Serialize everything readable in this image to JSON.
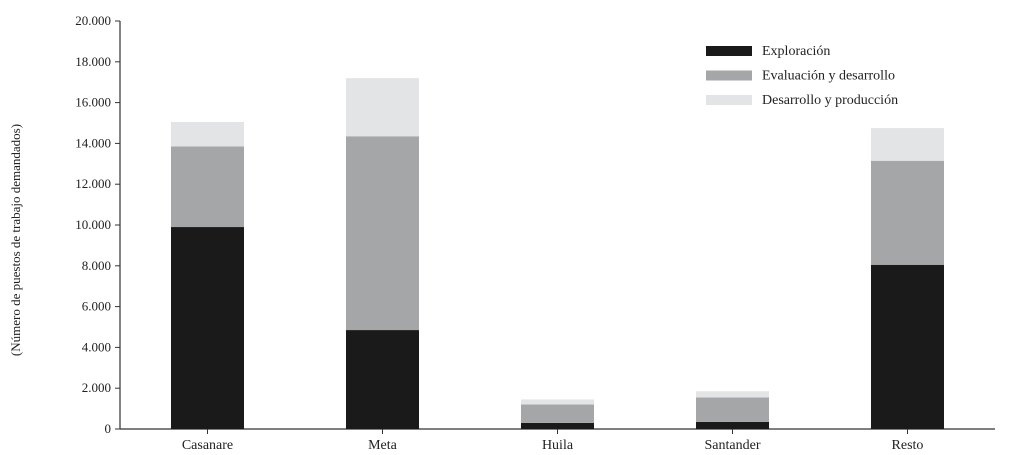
{
  "chart_data": {
    "type": "bar",
    "stacked": true,
    "title": "",
    "xlabel": "",
    "ylabel": "(Número de puestos de trabajo demandados)",
    "categories": [
      "Casanare",
      "Meta",
      "Huila",
      "Santander",
      "Resto"
    ],
    "series": [
      {
        "name": "Exploración",
        "color": "#1a1a1a",
        "values": [
          9900,
          4850,
          300,
          350,
          8050
        ]
      },
      {
        "name": "Evaluación y desarrollo",
        "color": "#a5a6a8",
        "values": [
          3950,
          9500,
          900,
          1200,
          5100
        ]
      },
      {
        "name": "Desarrollo y producción",
        "color": "#e3e4e5",
        "values": [
          1200,
          2850,
          250,
          300,
          1600
        ]
      }
    ],
    "ylim": [
      0,
      20000
    ],
    "yticks": [
      0,
      2000,
      4000,
      6000,
      8000,
      10000,
      12000,
      14000,
      16000,
      18000,
      20000
    ],
    "ytick_labels": [
      "0",
      "2.000",
      "4.000",
      "6.000",
      "8.000",
      "10.000",
      "12.000",
      "14.000",
      "16.000",
      "18.000",
      "20.000"
    ],
    "grid": false,
    "legend_position": "top-right"
  }
}
